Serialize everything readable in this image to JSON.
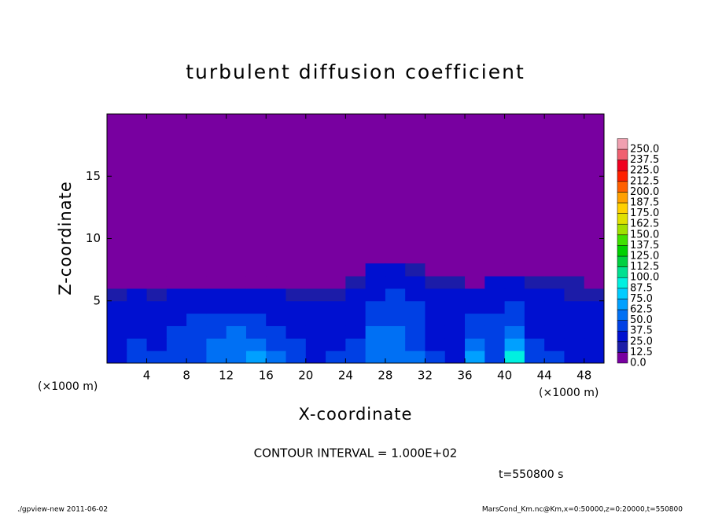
{
  "chart_data": {
    "type": "heatmap",
    "title": "turbulent diffusion coefficient",
    "xlabel": "X-coordinate",
    "ylabel": "Z-coordinate",
    "xunit_left": "(×1000 m)",
    "xunit_right": "(×1000 m)",
    "contour_note": "CONTOUR INTERVAL = 1.000E+02",
    "time_note": "t=550800 s",
    "footer_left": "./gpview-new  2011-06-02",
    "footer_right": "MarsCond_Km.nc@Km,x=0:50000,z=0:20000,t=550800",
    "xlim": [
      0,
      50
    ],
    "xticks": [
      4,
      8,
      12,
      16,
      20,
      24,
      28,
      32,
      36,
      40,
      44,
      48
    ],
    "ylim": [
      0,
      20
    ],
    "yticks": [
      5,
      10,
      15
    ],
    "x": [
      1,
      3,
      5,
      7,
      9,
      11,
      13,
      15,
      17,
      19,
      21,
      23,
      25,
      27,
      29,
      31,
      33,
      35,
      37,
      39,
      41,
      43,
      45,
      47,
      49
    ],
    "y": [
      0.5,
      1.5,
      2.5,
      3.5,
      4.5,
      5.5,
      6.5,
      7.5
    ],
    "z": [
      [
        35,
        40,
        38,
        42,
        45,
        55,
        62,
        65,
        50,
        40,
        35,
        38,
        40,
        58,
        62,
        50,
        38,
        35,
        72,
        45,
        90,
        40,
        38,
        35,
        30
      ],
      [
        32,
        38,
        36,
        40,
        42,
        50,
        58,
        60,
        45,
        38,
        32,
        36,
        38,
        55,
        58,
        45,
        35,
        32,
        55,
        42,
        70,
        38,
        36,
        34,
        30
      ],
      [
        30,
        35,
        34,
        38,
        40,
        45,
        50,
        48,
        40,
        35,
        30,
        34,
        36,
        50,
        52,
        42,
        34,
        30,
        45,
        40,
        55,
        36,
        34,
        32,
        28
      ],
      [
        28,
        32,
        30,
        36,
        38,
        40,
        42,
        40,
        36,
        32,
        28,
        32,
        34,
        45,
        48,
        40,
        32,
        28,
        38,
        38,
        45,
        34,
        32,
        30,
        28
      ],
      [
        26,
        30,
        28,
        32,
        34,
        36,
        36,
        35,
        32,
        30,
        26,
        30,
        32,
        40,
        42,
        38,
        30,
        28,
        35,
        36,
        40,
        32,
        30,
        28,
        26
      ],
      [
        22,
        25,
        24,
        26,
        28,
        30,
        28,
        28,
        26,
        24,
        20,
        24,
        28,
        35,
        38,
        34,
        28,
        26,
        30,
        32,
        34,
        28,
        26,
        24,
        22
      ],
      [
        0,
        0,
        0,
        0,
        0,
        0,
        0,
        0,
        0,
        0,
        0,
        0,
        20,
        30,
        34,
        30,
        24,
        22,
        0,
        25,
        28,
        22,
        20,
        20,
        0
      ],
      [
        0,
        0,
        0,
        0,
        0,
        0,
        0,
        0,
        0,
        0,
        0,
        0,
        0,
        25,
        28,
        20,
        0,
        0,
        0,
        0,
        0,
        0,
        0,
        0,
        0
      ]
    ],
    "colorbar": {
      "levels": [
        {
          "value": 0,
          "label": "0.0"
        },
        {
          "value": 12.5,
          "label": "12.5"
        },
        {
          "value": 25,
          "label": "25.0"
        },
        {
          "value": 37.5,
          "label": "37.5"
        },
        {
          "value": 50,
          "label": "50.0"
        },
        {
          "value": 62.5,
          "label": "62.5"
        },
        {
          "value": 75,
          "label": "75.0"
        },
        {
          "value": 87.5,
          "label": "87.5"
        },
        {
          "value": 100,
          "label": "100.0"
        },
        {
          "value": 112.5,
          "label": "112.5"
        },
        {
          "value": 125,
          "label": "125.0"
        },
        {
          "value": 137.5,
          "label": "137.5"
        },
        {
          "value": 150,
          "label": "150.0"
        },
        {
          "value": 162.5,
          "label": "162.5"
        },
        {
          "value": 175,
          "label": "175.0"
        },
        {
          "value": 187.5,
          "label": "187.5"
        },
        {
          "value": 200,
          "label": "200.0"
        },
        {
          "value": 212.5,
          "label": "212.5"
        },
        {
          "value": 225,
          "label": "225.0"
        },
        {
          "value": 237.5,
          "label": "237.5"
        },
        {
          "value": 250,
          "label": "250.0"
        }
      ],
      "colors": [
        "#7800a0",
        "#1c1ca8",
        "#0010d0",
        "#0040e4",
        "#0070f4",
        "#00a0ff",
        "#00ccff",
        "#00f0e0",
        "#00e090",
        "#00d040",
        "#00d000",
        "#40e000",
        "#a0e000",
        "#e0e000",
        "#ffd000",
        "#ffa000",
        "#ff6000",
        "#ff2000",
        "#f00020",
        "#f06070",
        "#f0a0b0"
      ]
    }
  }
}
